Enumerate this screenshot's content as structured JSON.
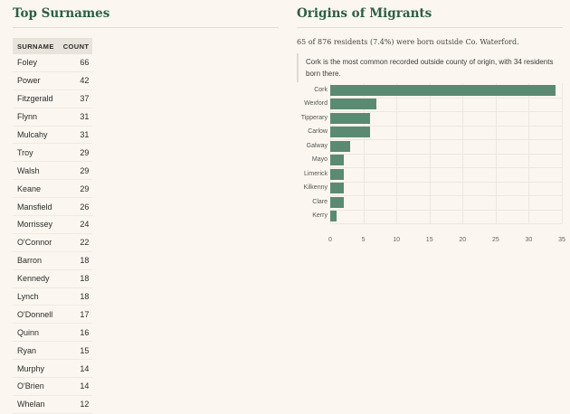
{
  "surnames": {
    "title": "Top Surnames",
    "columns": {
      "name": "SURNAME",
      "count": "COUNT"
    },
    "rows": [
      {
        "name": "Foley",
        "count": "66"
      },
      {
        "name": "Power",
        "count": "42"
      },
      {
        "name": "Fitzgerald",
        "count": "37"
      },
      {
        "name": "Flynn",
        "count": "31"
      },
      {
        "name": "Mulcahy",
        "count": "31"
      },
      {
        "name": "Troy",
        "count": "29"
      },
      {
        "name": "Walsh",
        "count": "29"
      },
      {
        "name": "Keane",
        "count": "29"
      },
      {
        "name": "Mansfield",
        "count": "26"
      },
      {
        "name": "Morrissey",
        "count": "24"
      },
      {
        "name": "O'Connor",
        "count": "22"
      },
      {
        "name": "Barron",
        "count": "18"
      },
      {
        "name": "Kennedy",
        "count": "18"
      },
      {
        "name": "Lynch",
        "count": "18"
      },
      {
        "name": "O'Donnell",
        "count": "17"
      },
      {
        "name": "Quinn",
        "count": "16"
      },
      {
        "name": "Ryan",
        "count": "15"
      },
      {
        "name": "Murphy",
        "count": "14"
      },
      {
        "name": "O'Brien",
        "count": "14"
      },
      {
        "name": "Whelan",
        "count": "12"
      }
    ]
  },
  "migrants": {
    "title": "Origins of Migrants",
    "summary": "65 of 876 residents (7.4%) were born outside Co. Waterford.",
    "callout": "Cork is the most common recorded outside county of origin, with 34 residents born there.",
    "bar_color": "#5a8a72"
  },
  "chart_data": {
    "type": "bar",
    "orientation": "horizontal",
    "categories": [
      "Cork",
      "Wexford",
      "Tipperary",
      "Carlow",
      "Galway",
      "Mayo",
      "Limerick",
      "Kilkenny",
      "Clare",
      "Kerry"
    ],
    "values": [
      34,
      7,
      6,
      6,
      3,
      2,
      2,
      2,
      2,
      1
    ],
    "title": "",
    "xlabel": "",
    "ylabel": "",
    "xlim": [
      0,
      35
    ],
    "xticks": [
      "0",
      "5",
      "10",
      "15",
      "20",
      "25",
      "30",
      "35"
    ],
    "grid": true
  }
}
